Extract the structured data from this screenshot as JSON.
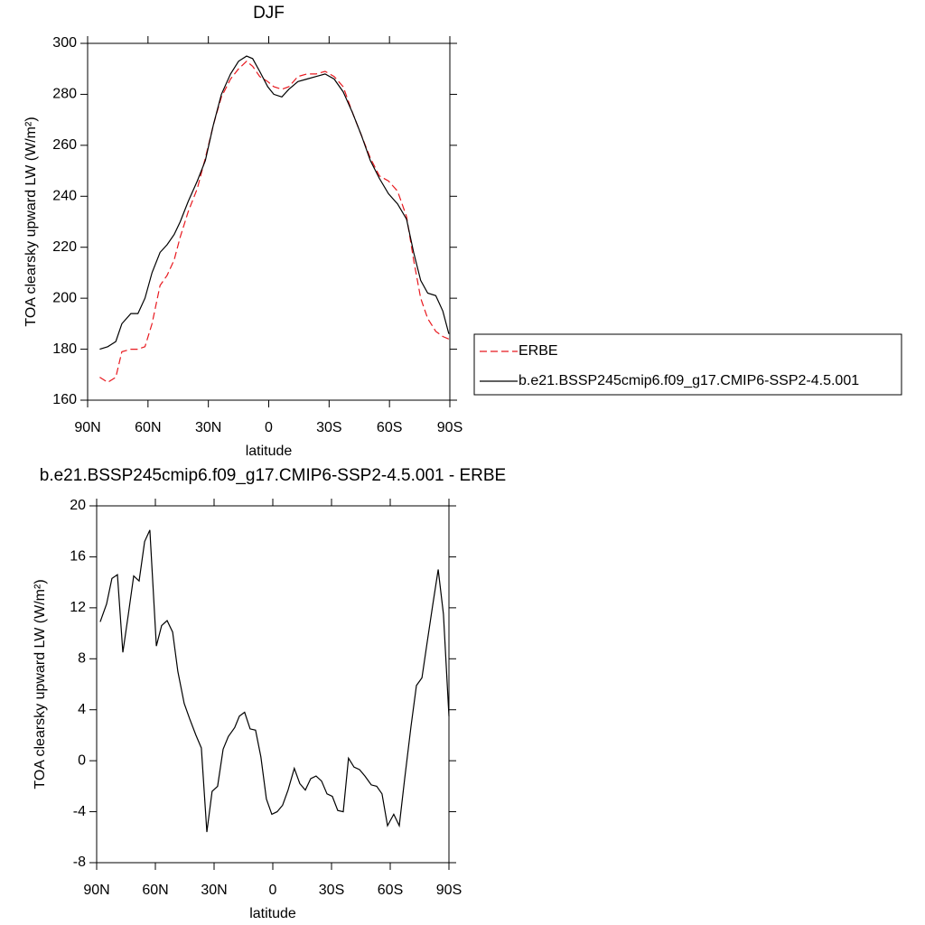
{
  "chart_data": [
    {
      "type": "line",
      "title": "DJF",
      "xlabel": "latitude",
      "ylabel": "TOA clearsky upward LW (W/m²)",
      "x": [
        84,
        80,
        76,
        73,
        68.5,
        65,
        61.5,
        58,
        54,
        50.5,
        47,
        44,
        40,
        35.5,
        31.5,
        27.5,
        23.5,
        19,
        15,
        11,
        8,
        4.5,
        0.5,
        -2.5,
        -6.5,
        -10,
        -14.5,
        -19,
        -23.5,
        -28,
        -32.5,
        -37,
        -41.5,
        -46,
        -50.5,
        -55,
        -59.5,
        -64,
        -68.5,
        -72,
        -75.5,
        -79,
        -83,
        -86.5,
        -89.5
      ],
      "series": [
        {
          "name": "ERBE",
          "color": "#e8191f",
          "dashed": true,
          "values": [
            169,
            167,
            169,
            179,
            180,
            180,
            181,
            190,
            205,
            209,
            215,
            224,
            234,
            243,
            255,
            268,
            279,
            286,
            290,
            293,
            291,
            287,
            285,
            283,
            282,
            283,
            287,
            288,
            288,
            289,
            287,
            283,
            273,
            264,
            255,
            248,
            246,
            242,
            232,
            215,
            200,
            192,
            187,
            185,
            184
          ]
        },
        {
          "name": "b.e21.BSSP245cmip6.f09_g17.CMIP6-SSP2-4.5.001",
          "color": "#000000",
          "dashed": false,
          "values": [
            180,
            181,
            183,
            190,
            194,
            194,
            200,
            210,
            218,
            221,
            225,
            230,
            238,
            246,
            254,
            268,
            280,
            288,
            293,
            295,
            294,
            289,
            283,
            280,
            279,
            282,
            285,
            286,
            287,
            288,
            286,
            281,
            273,
            264,
            254,
            247,
            241,
            237,
            231,
            218,
            207,
            202,
            201,
            195,
            186
          ]
        }
      ],
      "xlim": [
        90,
        -90
      ],
      "xticks": [
        {
          "value": 90,
          "label": "90N"
        },
        {
          "value": 60,
          "label": "60N"
        },
        {
          "value": 30,
          "label": "30N"
        },
        0,
        {
          "value": -30,
          "label": "30S"
        },
        {
          "value": -60,
          "label": "60S"
        },
        {
          "value": -90,
          "label": "90S"
        }
      ],
      "ylim": [
        160,
        300
      ],
      "yticks": [
        160,
        180,
        200,
        220,
        240,
        260,
        280,
        300
      ],
      "legend": "right"
    },
    {
      "type": "line",
      "title": "b.e21.BSSP245cmip6.f09_g17.CMIP6-SSP2-4.5.001 - ERBE",
      "xlabel": "latitude",
      "ylabel": "TOA clearsky upward LW (W/m²)",
      "x": [
        88.2,
        84.9,
        82.2,
        79.4,
        76.6,
        73.8,
        71.1,
        68.3,
        65.5,
        62.8,
        59.5,
        56.8,
        54,
        51.2,
        48.5,
        45.3,
        42.5,
        39.3,
        36.5,
        33.7,
        31,
        28.2,
        25.4,
        22.7,
        19.5,
        17.1,
        14.4,
        11.6,
        8.8,
        6.1,
        3.3,
        0.5,
        -2.2,
        -5,
        -7.8,
        -11,
        -13.8,
        -16.6,
        -19.4,
        -22.1,
        -24.9,
        -27.7,
        -30.4,
        -33.2,
        -36,
        -38.7,
        -41.5,
        -44.3,
        -47.1,
        -50.3,
        -53.1,
        -55.8,
        -58.6,
        -61.8,
        -64.6,
        -67.4,
        -70.6,
        -73.4,
        -76.2,
        -78.9,
        -81.7,
        -84.5,
        -87.2,
        -90
      ],
      "color": "#000000",
      "values": [
        10.9,
        12.3,
        14.3,
        14.6,
        8.5,
        11.5,
        14.5,
        14.1,
        17.2,
        18.1,
        9.0,
        10.6,
        11.0,
        10.1,
        7.0,
        4.5,
        3.3,
        2.0,
        1.0,
        -5.6,
        -2.4,
        -2.0,
        0.9,
        1.9,
        2.6,
        3.5,
        3.8,
        2.5,
        2.4,
        0.3,
        -3.0,
        -4.2,
        -4.0,
        -3.5,
        -2.3,
        -0.6,
        -1.8,
        -2.3,
        -1.4,
        -1.2,
        -1.6,
        -2.6,
        -2.8,
        -3.9,
        -4.0,
        0.2,
        -0.5,
        -0.7,
        -1.2,
        -1.9,
        -2.0,
        -2.6,
        -5.1,
        -4.2,
        -5.1,
        -1.4,
        2.7,
        5.9,
        6.5,
        9.3,
        12.2,
        15.0,
        11.5,
        3.5
      ],
      "xlim": [
        90,
        -90
      ],
      "xticks": [
        {
          "value": 90,
          "label": "90N"
        },
        {
          "value": 60,
          "label": "60N"
        },
        {
          "value": 30,
          "label": "30N"
        },
        0,
        {
          "value": -30,
          "label": "30S"
        },
        {
          "value": -60,
          "label": "60S"
        },
        {
          "value": -90,
          "label": "90S"
        }
      ],
      "ylim": [
        -8,
        20
      ],
      "yticks": [
        -8,
        -4,
        0,
        4,
        8,
        12,
        16,
        20
      ]
    }
  ]
}
